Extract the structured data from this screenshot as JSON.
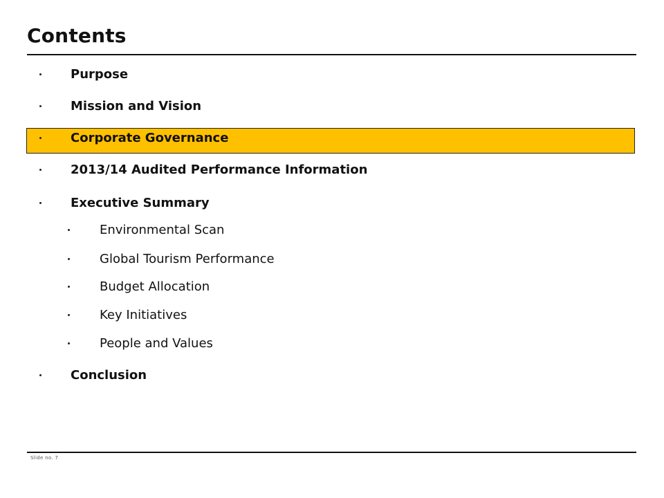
{
  "slide": {
    "title": "Contents",
    "number_label": "Slide no. 7",
    "highlight_color": "#ffc000",
    "highlighted_item": "Corporate Governance"
  },
  "contents": {
    "items": [
      {
        "label": "Purpose"
      },
      {
        "label": "Mission and Vision"
      },
      {
        "label": "Corporate Governance"
      },
      {
        "label": "2013/14 Audited Performance Information"
      },
      {
        "label": "Executive Summary"
      },
      {
        "label": "Environmental Scan"
      },
      {
        "label": "Global Tourism Performance"
      },
      {
        "label": "Budget Allocation"
      },
      {
        "label": "Key Initiatives"
      },
      {
        "label": "People and Values"
      },
      {
        "label": "Conclusion"
      }
    ]
  }
}
